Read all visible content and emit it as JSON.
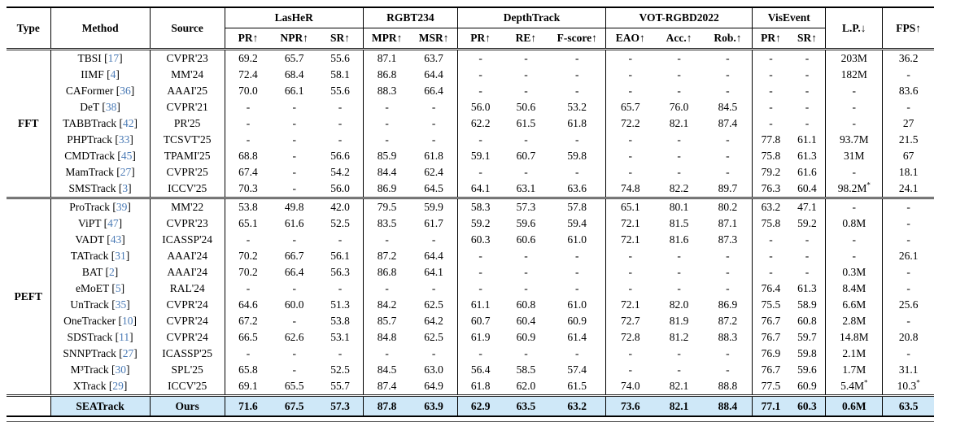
{
  "colors": {
    "citation_blue": "#4a7ab5",
    "highlight_row": "#cfe8f8"
  },
  "table": {
    "simple_headers": {
      "type": "Type",
      "method": "Method",
      "source": "Source",
      "lp": "L.P.↓",
      "fps": "FPS↑"
    },
    "groups": [
      {
        "label": "LasHeR",
        "cols": [
          "PR↑",
          "NPR↑",
          "SR↑"
        ]
      },
      {
        "label": "RGBT234",
        "cols": [
          "MPR↑",
          "MSR↑"
        ]
      },
      {
        "label": "DepthTrack",
        "cols": [
          "PR↑",
          "RE↑",
          "F-score↑"
        ]
      },
      {
        "label": "VOT-RGBD2022",
        "cols": [
          "EAO↑",
          "Acc.↑",
          "Rob.↑"
        ]
      },
      {
        "label": "VisEvent",
        "cols": [
          "PR↑",
          "SR↑"
        ]
      }
    ],
    "sections": [
      {
        "type_label": "FFT",
        "rows": [
          {
            "method": "TBSI",
            "cite": "17",
            "source": "CVPR'23",
            "values": [
              "69.2",
              "65.7",
              "55.6",
              "87.1",
              "63.7",
              "-",
              "-",
              "-",
              "-",
              "-",
              "-",
              "-",
              "-"
            ],
            "lp": "203M",
            "fps": "36.2"
          },
          {
            "method": "IIMF",
            "cite": "4",
            "source": "MM'24",
            "values": [
              "72.4",
              "68.4",
              "58.1",
              "86.8",
              "64.4",
              "-",
              "-",
              "-",
              "-",
              "-",
              "-",
              "-",
              "-"
            ],
            "lp": "182M",
            "fps": "-"
          },
          {
            "method": "CAFormer",
            "cite": "36",
            "source": "AAAI'25",
            "values": [
              "70.0",
              "66.1",
              "55.6",
              "88.3",
              "66.4",
              "-",
              "-",
              "-",
              "-",
              "-",
              "-",
              "-",
              "-"
            ],
            "lp": "-",
            "fps": "83.6"
          },
          {
            "method": "DeT",
            "cite": "38",
            "source": "CVPR'21",
            "values": [
              "-",
              "-",
              "-",
              "-",
              "-",
              "56.0",
              "50.6",
              "53.2",
              "65.7",
              "76.0",
              "84.5",
              "-",
              "-"
            ],
            "lp": "-",
            "fps": "-"
          },
          {
            "method": "TABBTrack",
            "cite": "42",
            "source": "PR'25",
            "values": [
              "-",
              "-",
              "-",
              "-",
              "-",
              "62.2",
              "61.5",
              "61.8",
              "72.2",
              "82.1",
              "87.4",
              "-",
              "-"
            ],
            "lp": "-",
            "fps": "27"
          },
          {
            "method": "PHPTrack",
            "cite": "33",
            "source": "TCSVT'25",
            "values": [
              "-",
              "-",
              "-",
              "-",
              "-",
              "-",
              "-",
              "-",
              "-",
              "-",
              "-",
              "77.8",
              "61.1"
            ],
            "lp": "93.7M",
            "fps": "21.5"
          },
          {
            "method": "CMDTrack",
            "cite": "45",
            "source": "TPAMI'25",
            "values": [
              "68.8",
              "-",
              "56.6",
              "85.9",
              "61.8",
              "59.1",
              "60.7",
              "59.8",
              "-",
              "-",
              "-",
              "75.8",
              "61.3"
            ],
            "lp": "31M",
            "fps": "67"
          },
          {
            "method": "MamTrack",
            "cite": "27",
            "source": "CVPR'25",
            "values": [
              "67.4",
              "-",
              "54.2",
              "84.4",
              "62.4",
              "-",
              "-",
              "-",
              "-",
              "-",
              "-",
              "79.2",
              "61.6"
            ],
            "lp": "-",
            "fps": "18.1"
          },
          {
            "method": "SMSTrack",
            "cite": "3",
            "source": "ICCV'25",
            "values": [
              "70.3",
              "-",
              "56.0",
              "86.9",
              "64.5",
              "64.1",
              "63.1",
              "63.6",
              "74.8",
              "82.2",
              "89.7",
              "76.3",
              "60.4"
            ],
            "lp": "98.2M*",
            "fps": "24.1"
          }
        ]
      },
      {
        "type_label": "PEFT",
        "rows": [
          {
            "method": "ProTrack",
            "cite": "39",
            "source": "MM'22",
            "values": [
              "53.8",
              "49.8",
              "42.0",
              "79.5",
              "59.9",
              "58.3",
              "57.3",
              "57.8",
              "65.1",
              "80.1",
              "80.2",
              "63.2",
              "47.1"
            ],
            "lp": "-",
            "fps": "-"
          },
          {
            "method": "ViPT",
            "cite": "47",
            "source": "CVPR'23",
            "values": [
              "65.1",
              "61.6",
              "52.5",
              "83.5",
              "61.7",
              "59.2",
              "59.6",
              "59.4",
              "72.1",
              "81.5",
              "87.1",
              "75.8",
              "59.2"
            ],
            "lp": "0.8M",
            "fps": "-"
          },
          {
            "method": "VADT",
            "cite": "43",
            "source": "ICASSP'24",
            "values": [
              "-",
              "-",
              "-",
              "-",
              "-",
              "60.3",
              "60.6",
              "61.0",
              "72.1",
              "81.6",
              "87.3",
              "-",
              "-"
            ],
            "lp": "-",
            "fps": "-"
          },
          {
            "method": "TATrack",
            "cite": "31",
            "source": "AAAI'24",
            "values": [
              "70.2",
              "66.7",
              "56.1",
              "87.2",
              "64.4",
              "-",
              "-",
              "-",
              "-",
              "-",
              "-",
              "-",
              "-"
            ],
            "lp": "-",
            "fps": "26.1"
          },
          {
            "method": "BAT",
            "cite": "2",
            "source": "AAAI'24",
            "values": [
              "70.2",
              "66.4",
              "56.3",
              "86.8",
              "64.1",
              "-",
              "-",
              "-",
              "-",
              "-",
              "-",
              "-",
              "-"
            ],
            "lp": "0.3M",
            "fps": "-"
          },
          {
            "method": "eMoET",
            "cite": "5",
            "source": "RAL'24",
            "values": [
              "-",
              "-",
              "-",
              "-",
              "-",
              "-",
              "-",
              "-",
              "-",
              "-",
              "-",
              "76.4",
              "61.3"
            ],
            "lp": "8.4M",
            "fps": "-"
          },
          {
            "method": "UnTrack",
            "cite": "35",
            "source": "CVPR'24",
            "values": [
              "64.6",
              "60.0",
              "51.3",
              "84.2",
              "62.5",
              "61.1",
              "60.8",
              "61.0",
              "72.1",
              "82.0",
              "86.9",
              "75.5",
              "58.9"
            ],
            "lp": "6.6M",
            "fps": "25.6"
          },
          {
            "method": "OneTracker",
            "cite": "10",
            "source": "CVPR'24",
            "values": [
              "67.2",
              "-",
              "53.8",
              "85.7",
              "64.2",
              "60.7",
              "60.4",
              "60.9",
              "72.7",
              "81.9",
              "87.2",
              "76.7",
              "60.8"
            ],
            "lp": "2.8M",
            "fps": "-"
          },
          {
            "method": "SDSTrack",
            "cite": "11",
            "source": "CVPR'24",
            "values": [
              "66.5",
              "62.6",
              "53.1",
              "84.8",
              "62.5",
              "61.9",
              "60.9",
              "61.4",
              "72.8",
              "81.2",
              "88.3",
              "76.7",
              "59.7"
            ],
            "lp": "14.8M",
            "fps": "20.8"
          },
          {
            "method": "SNNPTrack",
            "cite": "27",
            "source": "ICASSP'25",
            "values": [
              "-",
              "-",
              "-",
              "-",
              "-",
              "-",
              "-",
              "-",
              "-",
              "-",
              "-",
              "76.9",
              "59.8"
            ],
            "lp": "2.1M",
            "fps": "-"
          },
          {
            "method": "M³Track",
            "cite": "30",
            "source": "SPL'25",
            "values": [
              "65.8",
              "-",
              "52.5",
              "84.5",
              "63.0",
              "56.4",
              "58.5",
              "57.4",
              "-",
              "-",
              "-",
              "76.7",
              "59.6"
            ],
            "lp": "1.7M",
            "fps": "31.1"
          },
          {
            "method": "XTrack",
            "cite": "29",
            "source": "ICCV'25",
            "values": [
              "69.1",
              "65.5",
              "55.7",
              "87.4",
              "64.9",
              "61.8",
              "62.0",
              "61.5",
              "74.0",
              "82.1",
              "88.8",
              "77.5",
              "60.9"
            ],
            "lp": "5.4M*",
            "fps": "10.3*"
          }
        ]
      }
    ],
    "ours_row": {
      "method": "SEATrack",
      "source": "Ours",
      "values": [
        "71.6",
        "67.5",
        "57.3",
        "87.8",
        "63.9",
        "62.9",
        "63.5",
        "63.2",
        "73.6",
        "82.1",
        "88.4",
        "77.1",
        "60.3"
      ],
      "lp": "0.6M",
      "fps": "63.5"
    }
  }
}
